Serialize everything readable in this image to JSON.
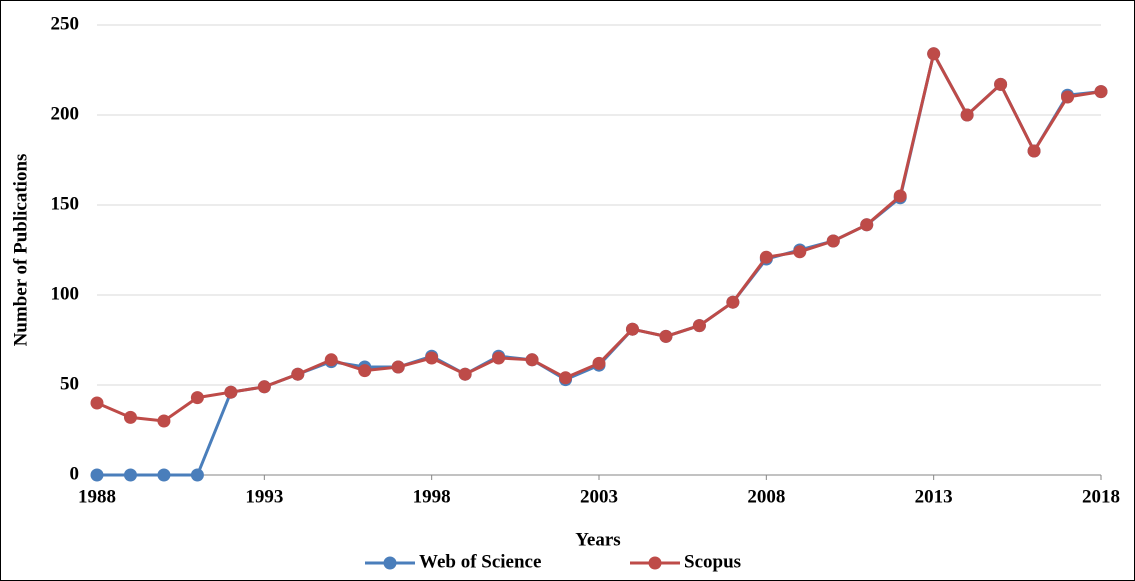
{
  "chart_data": {
    "type": "line",
    "x_label": "Years",
    "y_label": "Number of Publications",
    "x": [
      1988,
      1989,
      1990,
      1991,
      1992,
      1993,
      1994,
      1995,
      1996,
      1997,
      1998,
      1999,
      2000,
      2001,
      2002,
      2003,
      2004,
      2005,
      2006,
      2007,
      2008,
      2009,
      2010,
      2011,
      2012,
      2013,
      2014,
      2015,
      2016,
      2017,
      2018
    ],
    "series": [
      {
        "name": "Web of Science",
        "color": "#4a7ebb",
        "values": [
          0,
          0,
          0,
          0,
          46,
          49,
          56,
          63,
          60,
          60,
          66,
          56,
          66,
          64,
          53,
          61,
          81,
          77,
          83,
          96,
          120,
          125,
          130,
          139,
          154,
          234,
          200,
          217,
          180,
          211,
          213
        ]
      },
      {
        "name": "Scopus",
        "color": "#be4b48",
        "values": [
          40,
          32,
          30,
          43,
          46,
          49,
          56,
          64,
          58,
          60,
          65,
          56,
          65,
          64,
          54,
          62,
          81,
          77,
          83,
          96,
          121,
          124,
          130,
          139,
          155,
          234,
          200,
          217,
          180,
          210,
          213
        ]
      }
    ],
    "xlim": [
      1988,
      2018
    ],
    "xticks": [
      1988,
      1993,
      1998,
      2003,
      2008,
      2013,
      2018
    ],
    "ylim": [
      0,
      250
    ],
    "yticks": [
      0,
      50,
      100,
      150,
      200,
      250
    ],
    "grid": true,
    "legend": "bottom"
  }
}
